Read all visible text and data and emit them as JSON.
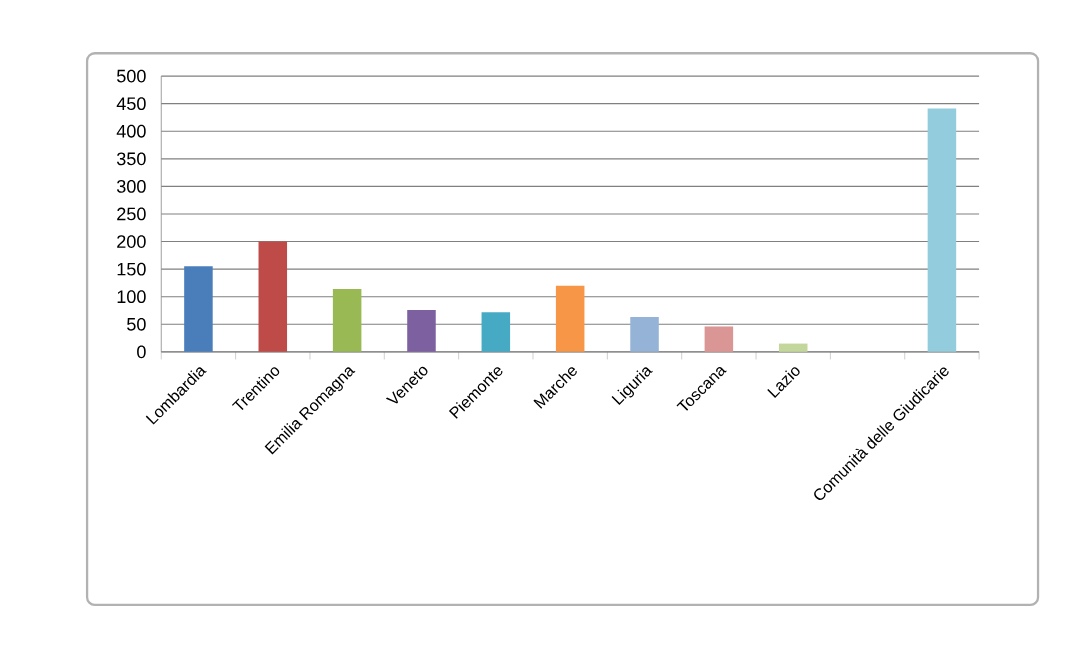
{
  "chart_data": {
    "type": "bar",
    "categories": [
      "Lombardia",
      "Trentino",
      "Emilia Romagna",
      "Veneto",
      "Piemonte",
      "Marche",
      "Liguria",
      "Toscana",
      "Lazio",
      null,
      "Comunità delle Giudicarie"
    ],
    "values": [
      155,
      200,
      114,
      76,
      72,
      120,
      63,
      46,
      15,
      null,
      441
    ],
    "colors": [
      "#4a7ebb",
      "#be4b48",
      "#98b954",
      "#7d60a0",
      "#46aac5",
      "#f79646",
      "#95b3d7",
      "#d99694",
      "#c3d69b",
      null,
      "#93cddd"
    ],
    "ylim": [
      0,
      500
    ],
    "yticks": [
      0,
      50,
      100,
      150,
      200,
      250,
      300,
      350,
      400,
      450,
      500
    ],
    "grid": "y"
  }
}
